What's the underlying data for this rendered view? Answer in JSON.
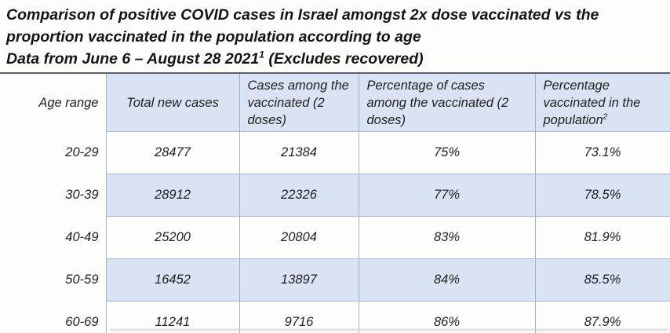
{
  "title": {
    "line1": "Comparison of positive COVID cases in Israel amongst 2x dose vaccinated vs the",
    "line2": "proportion vaccinated in the population according to age",
    "line3_pre": "Data from June 6 – August 28 2021",
    "line3_sup": "1",
    "line3_post": " (Excludes recovered)"
  },
  "table": {
    "columns": {
      "age": "Age range",
      "total": "Total new cases",
      "cases_vaccinated": "Cases among the vaccinated (2 doses)",
      "pct_cases_vaccinated": "Percentage of cases among the vaccinated (2 doses)",
      "pct_population_pre": "Percentage vaccinated in the population",
      "pct_population_sup": "2"
    },
    "rows": [
      {
        "age": "20-29",
        "total": "28477",
        "cases_vaccinated": "21384",
        "pct_cases_vaccinated": "75%",
        "pct_population_vaccinated": "73.1%"
      },
      {
        "age": "30-39",
        "total": "28912",
        "cases_vaccinated": "22326",
        "pct_cases_vaccinated": "77%",
        "pct_population_vaccinated": "78.5%"
      },
      {
        "age": "40-49",
        "total": "25200",
        "cases_vaccinated": "20804",
        "pct_cases_vaccinated": "83%",
        "pct_population_vaccinated": "81.9%"
      },
      {
        "age": "50-59",
        "total": "16452",
        "cases_vaccinated": "13897",
        "pct_cases_vaccinated": "84%",
        "pct_population_vaccinated": "85.5%"
      },
      {
        "age": "60-69",
        "total": "11241",
        "cases_vaccinated": "9716",
        "pct_cases_vaccinated": "86%",
        "pct_population_vaccinated": "87.9%"
      }
    ]
  },
  "chart_data": {
    "type": "table",
    "title": "Comparison of positive COVID cases in Israel amongst 2x dose vaccinated vs the proportion vaccinated in the population according to age",
    "subtitle": "Data from June 6 – August 28 2021 (Excludes recovered)",
    "categories": [
      "20-29",
      "30-39",
      "40-49",
      "50-59",
      "60-69"
    ],
    "series": [
      {
        "name": "Total new cases",
        "values": [
          28477,
          28912,
          25200,
          16452,
          11241
        ]
      },
      {
        "name": "Cases among the vaccinated (2 doses)",
        "values": [
          21384,
          22326,
          20804,
          13897,
          9716
        ]
      },
      {
        "name": "Percentage of cases among the vaccinated (2 doses)",
        "values": [
          "75%",
          "77%",
          "83%",
          "84%",
          "86%"
        ]
      },
      {
        "name": "Percentage vaccinated in the population",
        "values": [
          "73.1%",
          "78.5%",
          "81.9%",
          "85.5%",
          "87.9%"
        ]
      }
    ]
  },
  "colors": {
    "header_fill": "#dae3f3",
    "stripe_fill": "#dae3f3",
    "grid_border": "#9fb2d1",
    "top_border": "#5d6166",
    "text": "#1c1c1c"
  }
}
